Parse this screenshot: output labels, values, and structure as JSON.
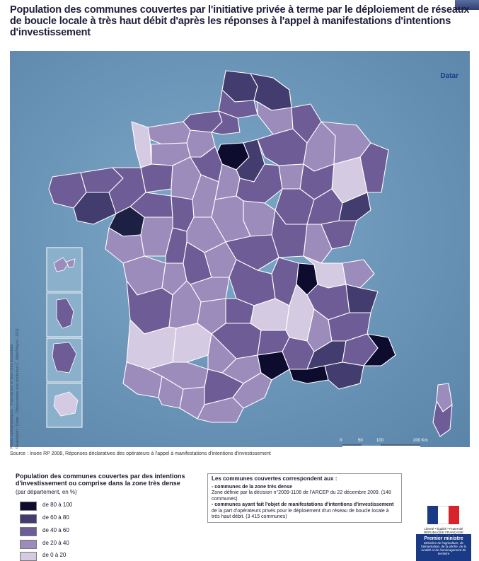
{
  "title": "Population des communes couvertes par l'initiative privée à terme par le déploiement de réseaux de boucle locale à très haut débit d'après les réponses à l'appel à manifestations d'intentions d'investissement",
  "logo_text": "Datar",
  "credits": {
    "line1": "Fonds cartographiques : Francièmes et Dom Géo Essentials",
    "line2": "Réalisation : Datar - Observatoire des territoires C. Milet/Mayer - 2011"
  },
  "source": "Source : Insee RP 2008, Réponses déclaratives des opérateurs à l'appel à manifestations d'intentions d'investissement",
  "scale": {
    "ticks": [
      "0",
      "50",
      "100",
      "200 Km"
    ]
  },
  "legend": {
    "title": "Population des communes couvertes par des intentions d'investissement ou comprise dans la zone très dense",
    "subtitle": "(par département, en %)",
    "classes": [
      {
        "label": "de 80 à 100",
        "color": "#0d0b2e"
      },
      {
        "label": "de 60 à 80",
        "color": "#433c6e"
      },
      {
        "label": "de 40 à 60",
        "color": "#6e5c96"
      },
      {
        "label": "de 20 à 40",
        "color": "#9c8cbc"
      },
      {
        "label": "de 0 à 20",
        "color": "#d4cbe2"
      }
    ]
  },
  "coverage": {
    "heading": "Les communes couvertes correspondent aux :",
    "item1_title": "- communes de la zone très dense",
    "item1_text": "Zone définie par la décision n°2009-1106 de l'ARCEP du 22 décembre 2009. (148 communes)",
    "item2_title": "- communes ayant fait l'objet de manifestations d'intentions d'investissement",
    "item2_text": "de la part d'opérateurs privés pour le déploiement d'un réseau de boucle locale à très haut débit. (3 415 communes)"
  },
  "premier_ministre": {
    "rf": "Liberté • Égalité • Fraternité RÉPUBLIQUE FRANÇAISE",
    "title": "Premier ministre",
    "subtitle": "Ministère de l'agriculture, de l'alimentation, de la pêche, de la ruralité et de l'aménagement du territoire"
  },
  "colors": {
    "sea": "#6e98ba",
    "border": "#ffffff"
  }
}
